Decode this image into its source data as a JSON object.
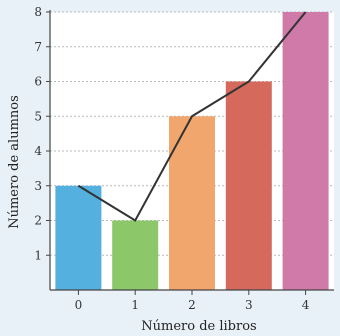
{
  "chart_data": {
    "type": "bar",
    "categories": [
      "0",
      "1",
      "2",
      "3",
      "4"
    ],
    "values": [
      3,
      2,
      5,
      6,
      8
    ],
    "overlay_line": true,
    "xlabel": "Número de libros",
    "ylabel": "Número de alumnos",
    "yticks": [
      "1",
      "2",
      "3",
      "4",
      "5",
      "6",
      "7",
      "8"
    ],
    "ylim": [
      0,
      8
    ],
    "grid": "horizontal dotted",
    "colors": {
      "background": "#e9f1f8",
      "plot_background": "#ffffff",
      "grid": "#b9b9b9",
      "line": "#333333",
      "bars": [
        "#54b0de",
        "#8cc76a",
        "#f0a66d",
        "#d4695c",
        "#cf7aa9"
      ]
    }
  }
}
